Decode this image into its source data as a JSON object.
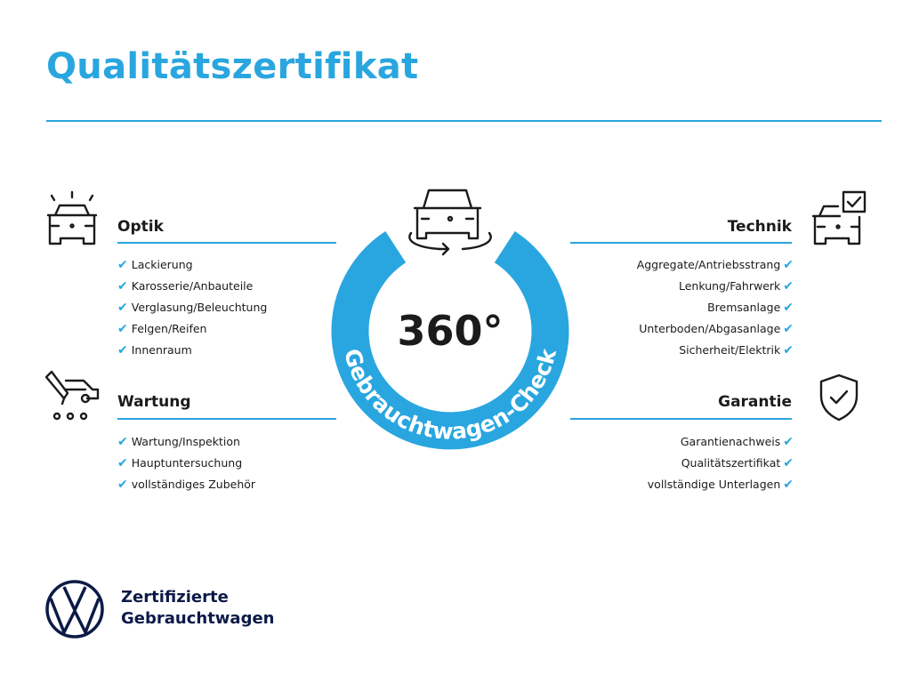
{
  "title": "Qualitätszertifikat",
  "colors": {
    "accent": "#29a6df",
    "text": "#1b1b1b",
    "brand_navy": "#0c1a48"
  },
  "center": {
    "value": "360°",
    "ring_text": "Gebrauchtwagen-Check",
    "icon": "car-rotate-icon"
  },
  "sections": {
    "optik": {
      "heading": "Optik",
      "icon": "car-lights-icon",
      "items": [
        "Lackierung",
        "Karosserie/Anbauteile",
        "Verglasung/Beleuchtung",
        "Felgen/Reifen",
        "Innenraum"
      ]
    },
    "wartung": {
      "heading": "Wartung",
      "icon": "car-service-icon",
      "items": [
        "Wartung/Inspektion",
        "Hauptuntersuchung",
        "vollständiges Zubehör"
      ]
    },
    "technik": {
      "heading": "Technik",
      "icon": "car-checkbox-icon",
      "items": [
        "Aggregate/Antriebsstrang",
        "Lenkung/Fahrwerk",
        "Bremsanlage",
        "Unterboden/Abgasanlage",
        "Sicherheit/Elektrik"
      ]
    },
    "garantie": {
      "heading": "Garantie",
      "icon": "shield-check-icon",
      "items": [
        "Garantienachweis",
        "Qualitätszertifikat",
        "vollständige Unterlagen"
      ]
    }
  },
  "check_mark": "✔",
  "footer": {
    "line1": "Zertifizierte",
    "line2": "Gebrauchtwagen",
    "logo": "VW"
  }
}
